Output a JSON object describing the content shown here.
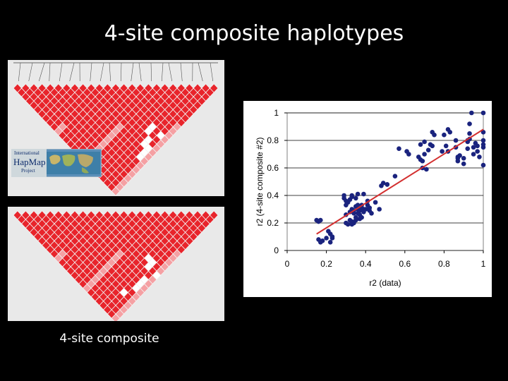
{
  "slide": {
    "title": "4-site composite haplotypes",
    "caption": "4-site composite",
    "logo": {
      "line1": "International",
      "line2": "HapMap",
      "line3": "Project"
    }
  },
  "colors": {
    "background": "#000000",
    "points": "#1a237e",
    "trendline": "#d32f2f",
    "ld_high": "#e8242b",
    "ld_low": "#ffffff"
  },
  "chart_data": {
    "type": "scatter",
    "title": "",
    "xlabel": "r2 (data)",
    "ylabel": "r2 (4-site composite #2)",
    "xlim": [
      0,
      1
    ],
    "ylim": [
      0,
      1
    ],
    "xticks": [
      "0",
      "0.2",
      "0.4",
      "0.6",
      "0.8",
      "1"
    ],
    "yticks": [
      "0",
      "0.2",
      "0.4",
      "0.6",
      "0.8",
      "1"
    ],
    "grid": "horizontal",
    "legend": "none",
    "trendline": {
      "x": [
        0.15,
        1.0
      ],
      "y": [
        0.12,
        0.88
      ]
    },
    "points": [
      [
        0.15,
        0.22
      ],
      [
        0.16,
        0.21
      ],
      [
        0.17,
        0.22
      ],
      [
        0.16,
        0.08
      ],
      [
        0.17,
        0.06
      ],
      [
        0.18,
        0.07
      ],
      [
        0.2,
        0.09
      ],
      [
        0.22,
        0.06
      ],
      [
        0.23,
        0.09
      ],
      [
        0.23,
        0.1
      ],
      [
        0.21,
        0.14
      ],
      [
        0.22,
        0.12
      ],
      [
        0.29,
        0.38
      ],
      [
        0.29,
        0.4
      ],
      [
        0.3,
        0.36
      ],
      [
        0.31,
        0.35
      ],
      [
        0.3,
        0.33
      ],
      [
        0.32,
        0.37
      ],
      [
        0.33,
        0.39
      ],
      [
        0.33,
        0.4
      ],
      [
        0.35,
        0.38
      ],
      [
        0.36,
        0.41
      ],
      [
        0.3,
        0.26
      ],
      [
        0.3,
        0.2
      ],
      [
        0.31,
        0.19
      ],
      [
        0.32,
        0.22
      ],
      [
        0.33,
        0.21
      ],
      [
        0.33,
        0.19
      ],
      [
        0.34,
        0.2
      ],
      [
        0.35,
        0.22
      ],
      [
        0.32,
        0.28
      ],
      [
        0.33,
        0.3
      ],
      [
        0.34,
        0.29
      ],
      [
        0.34,
        0.27
      ],
      [
        0.35,
        0.32
      ],
      [
        0.36,
        0.3
      ],
      [
        0.36,
        0.27
      ],
      [
        0.37,
        0.26
      ],
      [
        0.37,
        0.29
      ],
      [
        0.38,
        0.3
      ],
      [
        0.38,
        0.33
      ],
      [
        0.36,
        0.33
      ],
      [
        0.35,
        0.24
      ],
      [
        0.37,
        0.23
      ],
      [
        0.38,
        0.24
      ],
      [
        0.39,
        0.28
      ],
      [
        0.39,
        0.3
      ],
      [
        0.4,
        0.3
      ],
      [
        0.38,
        0.31
      ],
      [
        0.39,
        0.41
      ],
      [
        0.42,
        0.31
      ],
      [
        0.42,
        0.29
      ],
      [
        0.43,
        0.27
      ],
      [
        0.45,
        0.35
      ],
      [
        0.49,
        0.49
      ],
      [
        0.48,
        0.47
      ],
      [
        0.51,
        0.48
      ],
      [
        0.47,
        0.3
      ],
      [
        0.41,
        0.36
      ],
      [
        0.41,
        0.33
      ],
      [
        0.51,
        0.48
      ],
      [
        0.55,
        0.54
      ],
      [
        0.57,
        0.74
      ],
      [
        0.61,
        0.72
      ],
      [
        0.62,
        0.7
      ],
      [
        0.67,
        0.68
      ],
      [
        0.68,
        0.66
      ],
      [
        0.69,
        0.65
      ],
      [
        0.7,
        0.79
      ],
      [
        0.7,
        0.7
      ],
      [
        0.68,
        0.77
      ],
      [
        0.69,
        0.6
      ],
      [
        0.71,
        0.59
      ],
      [
        0.72,
        0.73
      ],
      [
        0.73,
        0.77
      ],
      [
        0.74,
        0.76
      ],
      [
        0.74,
        0.86
      ],
      [
        0.75,
        0.84
      ],
      [
        0.79,
        0.72
      ],
      [
        0.8,
        0.84
      ],
      [
        0.82,
        0.72
      ],
      [
        0.81,
        0.76
      ],
      [
        0.82,
        0.88
      ],
      [
        0.83,
        0.86
      ],
      [
        0.86,
        0.8
      ],
      [
        0.86,
        0.75
      ],
      [
        0.87,
        0.68
      ],
      [
        0.87,
        0.67
      ],
      [
        0.87,
        0.65
      ],
      [
        0.88,
        0.69
      ],
      [
        0.9,
        0.67
      ],
      [
        0.9,
        0.63
      ],
      [
        0.92,
        0.79
      ],
      [
        0.92,
        0.8
      ],
      [
        0.92,
        0.74
      ],
      [
        0.93,
        0.81
      ],
      [
        0.93,
        0.85
      ],
      [
        0.93,
        0.92
      ],
      [
        0.94,
        1.0
      ],
      [
        0.95,
        0.75
      ],
      [
        0.95,
        0.7
      ],
      [
        0.96,
        0.78
      ],
      [
        0.97,
        0.72
      ],
      [
        0.97,
        0.76
      ],
      [
        0.98,
        0.68
      ],
      [
        1.0,
        1.0
      ],
      [
        1.0,
        0.86
      ],
      [
        1.0,
        0.8
      ],
      [
        1.0,
        0.77
      ],
      [
        1.0,
        0.75
      ],
      [
        1.0,
        0.62
      ]
    ]
  }
}
